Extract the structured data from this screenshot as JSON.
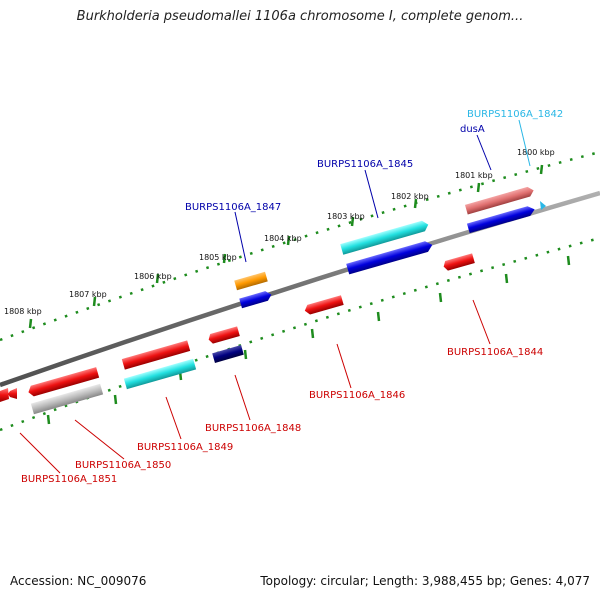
{
  "title": "Burkholderia pseudomallei 1106a chromosome I, complete genom...",
  "footer": {
    "accession": "Accession: NC_009076",
    "summary": "Topology: circular; Length: 3,988,455 bp; Genes: 4,077"
  },
  "scale_labels": [
    "1800 kbp",
    "1801 kbp",
    "1802 kbp",
    "1803 kbp",
    "1804 kbp",
    "1805 kbp",
    "1806 kbp",
    "1807 kbp",
    "1808 kbp"
  ],
  "genes": [
    {
      "id": "burps1106a-1842",
      "label": "BURPS1106A_1842",
      "color": "#2ab7e6"
    },
    {
      "id": "dusa",
      "label": "dusA",
      "color": "#0000aa"
    },
    {
      "id": "burps1106a-1845",
      "label": "BURPS1106A_1845",
      "color": "#0000aa"
    },
    {
      "id": "burps1106a-1847",
      "label": "BURPS1106A_1847",
      "color": "#0000aa"
    },
    {
      "id": "burps1106a-1844",
      "label": "BURPS1106A_1844",
      "color": "#cc0000"
    },
    {
      "id": "burps1106a-1846",
      "label": "BURPS1106A_1846",
      "color": "#cc0000"
    },
    {
      "id": "burps1106a-1848",
      "label": "BURPS1106A_1848",
      "color": "#cc0000"
    },
    {
      "id": "burps1106a-1849",
      "label": "BURPS1106A_1849",
      "color": "#cc0000"
    },
    {
      "id": "burps1106a-1850",
      "label": "BURPS1106A_1850",
      "color": "#cc0000"
    },
    {
      "id": "burps1106a-1851",
      "label": "BURPS1106A_1851",
      "color": "#cc0000"
    }
  ],
  "colors": {
    "backbone": "#808080",
    "ticks": "#1e8c1e",
    "red_gene": "#ee1111",
    "blue_gene": "#0000dd",
    "cyan_gene": "#22e0e0",
    "orange_gene": "#ff9900",
    "navy_gene": "#000080",
    "pink_gene": "#e07070",
    "gray_gene": "#bbbbbb"
  }
}
